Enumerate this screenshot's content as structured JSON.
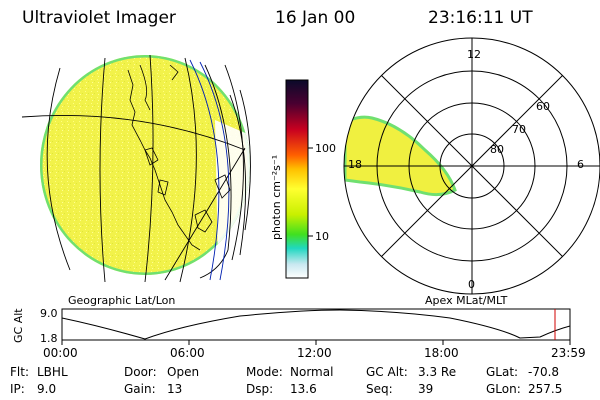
{
  "header": {
    "title": "Ultraviolet Imager",
    "date": "16 Jan 00",
    "time": "23:16:11 UT"
  },
  "colorbar": {
    "unit_label": "photon cm⁻²s⁻¹",
    "ticks": [
      "100",
      "10"
    ],
    "colors": [
      "#0a0a2a",
      "#4a0030",
      "#c80020",
      "#ff6000",
      "#ffc000",
      "#ffff30",
      "#c8f000",
      "#40e020",
      "#20d8c0",
      "#c8e8f0",
      "#ffffff"
    ]
  },
  "geo_map": {
    "label": "Geographic Lat/Lon"
  },
  "polar_map": {
    "label": "Apex MLat/MLT",
    "mlt_labels": [
      "12",
      "6",
      "0",
      "18"
    ],
    "lat_labels": [
      "60",
      "70",
      "80"
    ]
  },
  "altitude_plot": {
    "ylabel": "GC Alt",
    "y_ticks": [
      "9.0",
      "1.8"
    ],
    "x_ticks": [
      "00:00",
      "06:00",
      "12:00",
      "18:00",
      "23:59"
    ]
  },
  "info": {
    "flt_label": "Flt:",
    "flt_value": "LBHL",
    "ip_label": "IP:",
    "ip_value": "9.0",
    "door_label": "Door:",
    "door_value": "Open",
    "gain_label": "Gain:",
    "gain_value": "13",
    "mode_label": "Mode:",
    "mode_value": "Normal",
    "dsp_label": "Dsp:",
    "dsp_value": "13.6",
    "gcalt_label": "GC Alt:",
    "gcalt_value": "3.3 Re",
    "seq_label": "Seq:",
    "seq_value": "39",
    "glat_label": "GLat:",
    "glat_value": "-70.8",
    "glon_label": "GLon:",
    "glon_value": "257.5"
  }
}
